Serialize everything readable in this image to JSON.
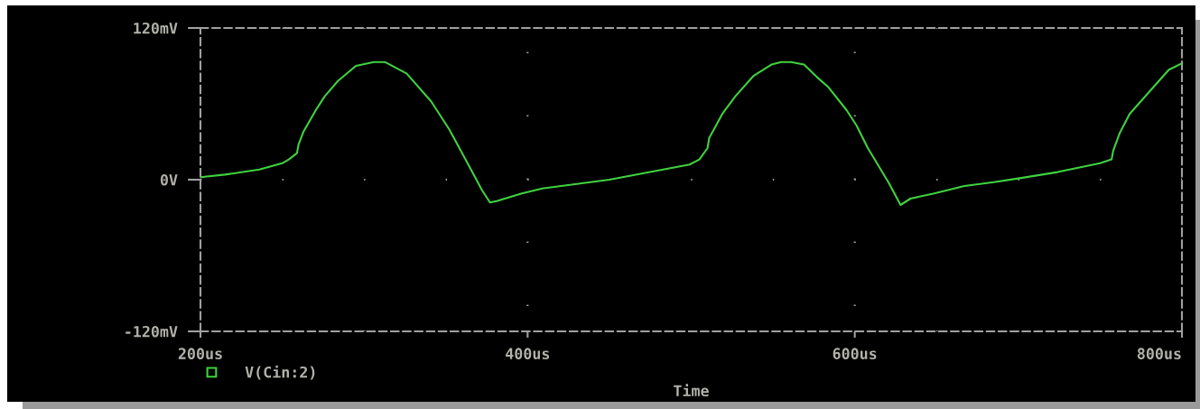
{
  "chart_data": {
    "type": "line",
    "xlabel": "Time",
    "x": [
      200,
      215,
      236,
      250,
      254,
      259,
      260,
      263,
      271,
      276,
      284,
      295,
      306,
      313,
      326,
      341,
      352,
      365,
      372,
      377,
      381,
      396,
      409,
      450,
      499,
      505,
      510,
      511,
      514,
      519,
      527,
      538,
      549,
      555,
      561,
      569,
      577,
      584,
      595,
      601,
      608,
      621,
      628,
      634,
      648,
      667,
      685,
      700,
      724,
      750,
      757,
      758,
      762,
      768,
      779,
      792,
      800
    ],
    "series": [
      {
        "name": "V(Cin:2)",
        "color": "#3fd23f",
        "values": [
          2,
          4,
          8,
          13,
          16,
          21,
          28,
          38,
          56,
          66,
          78,
          90,
          93,
          93,
          84,
          62,
          40,
          9,
          -8,
          -18,
          -17,
          -11,
          -7,
          0,
          12,
          16,
          25,
          33,
          40,
          52,
          66,
          82,
          91,
          93,
          93,
          91,
          81,
          73,
          55,
          43,
          25,
          -3,
          -20,
          -15,
          -11,
          -5,
          -2,
          1,
          6,
          13,
          16,
          23,
          37,
          52,
          68,
          87,
          92
        ]
      }
    ],
    "xlim": [
      200,
      800
    ],
    "ylim": [
      -120,
      120
    ],
    "xticks": [
      {
        "value": 200,
        "label": "200us"
      },
      {
        "value": 400,
        "label": "400us"
      },
      {
        "value": 600,
        "label": "600us"
      },
      {
        "value": 800,
        "label": "800us"
      }
    ],
    "yticks": [
      {
        "value": -120,
        "label": "-120mV"
      },
      {
        "value": 0,
        "label": "0V"
      },
      {
        "value": 120,
        "label": "120mV"
      }
    ],
    "grid": true,
    "legend": "bottom left",
    "line_style": "solid"
  }
}
